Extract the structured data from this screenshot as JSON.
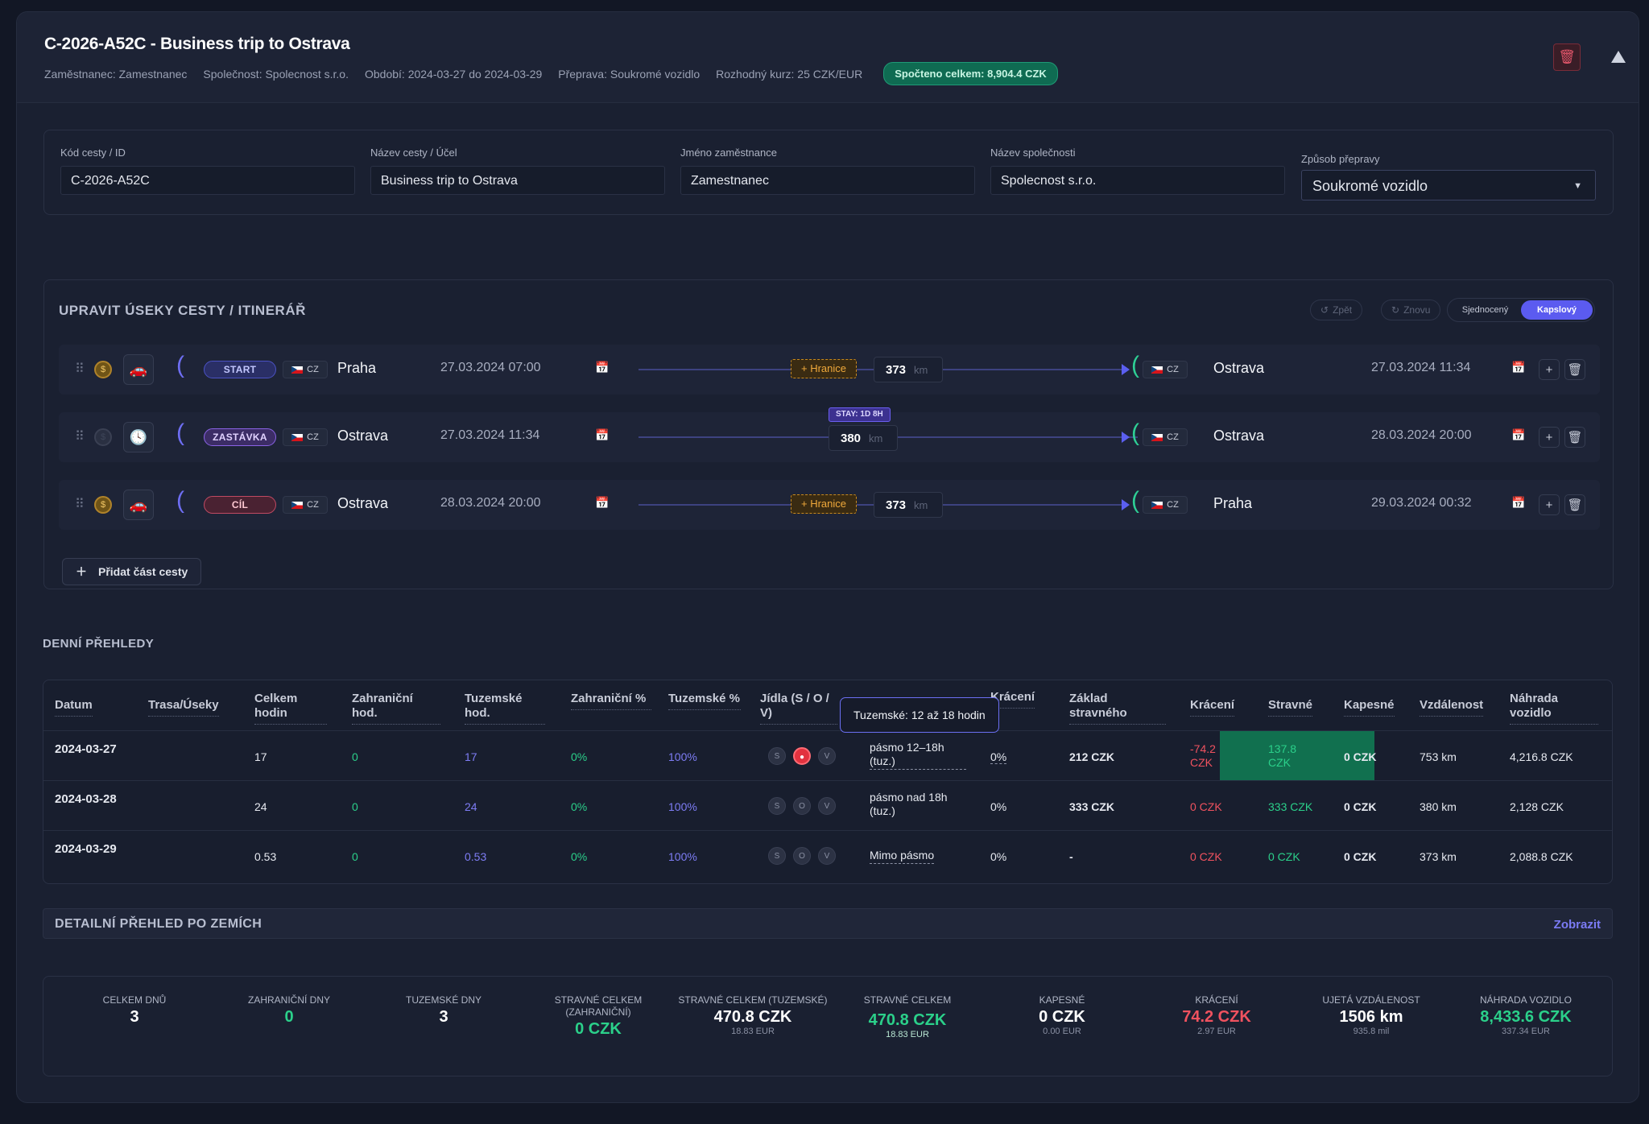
{
  "header": {
    "title": "C-2026-A52C - Business trip to Ostrava",
    "employee": "Zaměstnanec: Zamestnanec",
    "company": "Společnost: Spolecnost s.r.o.",
    "period": "Období: 2024-03-27 do 2024-03-29",
    "transport": "Přeprava: Soukromé vozidlo",
    "rate": "Rozhodný kurz: 25 CZK/EUR",
    "total_badge": "Spočteno celkem: 8,904.4 CZK"
  },
  "fields": {
    "code_label": "Kód cesty / ID",
    "code_value": "C-2026-A52C",
    "name_label": "Název cesty / Účel",
    "name_value": "Business trip to Ostrava",
    "employee_label": "Jméno zaměstnance",
    "employee_value": "Zamestnanec",
    "company_label": "Název společnosti",
    "company_value": "Spolecnost s.r.o.",
    "transport_label": "Způsob přepravy",
    "transport_value": "Soukromé vozidlo"
  },
  "itinerary": {
    "title": "UPRAVIT ÚSEKY CESTY / ITINERÁŘ",
    "undo": "Zpět",
    "redo": "Znovu",
    "view_unified": "Sjednocený",
    "view_capsule": "Kapslový",
    "add_label": "Přidat část cesty",
    "segments": [
      {
        "type": "START",
        "from_cc": "CZ",
        "from_city": "Praha",
        "from_dt": "27.03.2024 07:00",
        "border": "+ Hranice",
        "km": "373",
        "unit": "km",
        "to_cc": "CZ",
        "to_city": "Ostrava",
        "to_dt": "27.03.2024 11:34"
      },
      {
        "type": "ZASTÁVKA",
        "from_cc": "CZ",
        "from_city": "Ostrava",
        "from_dt": "27.03.2024 11:34",
        "stay": "STAY: 1D 8H",
        "km": "380",
        "unit": "km",
        "to_cc": "CZ",
        "to_city": "Ostrava",
        "to_dt": "28.03.2024 20:00"
      },
      {
        "type": "CÍL",
        "from_cc": "CZ",
        "from_city": "Ostrava",
        "from_dt": "28.03.2024 20:00",
        "border": "+ Hranice",
        "km": "373",
        "unit": "km",
        "to_cc": "CZ",
        "to_city": "Praha",
        "to_dt": "29.03.2024 00:32"
      }
    ]
  },
  "daily": {
    "title": "DENNÍ PŘEHLEDY",
    "headers": [
      "Datum",
      "Trasa/Úseky",
      "Celkem hodin",
      "Zahraniční hod.",
      "Tuzemské hod.",
      "Zahraniční %",
      "Tuzemské %",
      "Jídla (S / O / V)",
      "Krácení",
      "Základ stravného",
      "Krácení",
      "Stravné",
      "Kapesné",
      "Vzdálenost",
      "Náhrada vozidlo"
    ],
    "tooltip": "Tuzemské: 12 až 18 hodin",
    "rows": [
      {
        "date": "2024-03-27",
        "total": "17",
        "foreign_h": "0",
        "domestic_h": "17",
        "foreign_p": "0%",
        "domestic_p": "100%",
        "band": "pásmo 12–18h (tuz.)",
        "cut_p": "0%",
        "base": "212 CZK",
        "cut": "-74.2 CZK",
        "meal": "137.8 CZK",
        "pocket": "0 CZK",
        "dist": "753 km",
        "vehicle": "4,216.8 CZK"
      },
      {
        "date": "2024-03-28",
        "total": "24",
        "foreign_h": "0",
        "domestic_h": "24",
        "foreign_p": "0%",
        "domestic_p": "100%",
        "band": "pásmo nad 18h (tuz.)",
        "cut_p": "0%",
        "base": "333 CZK",
        "cut": "0 CZK",
        "meal": "333 CZK",
        "pocket": "0 CZK",
        "dist": "380 km",
        "vehicle": "2,128 CZK"
      },
      {
        "date": "2024-03-29",
        "total": "0.53",
        "foreign_h": "0",
        "domestic_h": "0.53",
        "foreign_p": "0%",
        "domestic_p": "100%",
        "band": "Mimo pásmo",
        "cut_p": "0%",
        "base": "-",
        "cut": "0 CZK",
        "meal": "0 CZK",
        "pocket": "0 CZK",
        "dist": "373 km",
        "vehicle": "2,088.8 CZK"
      }
    ],
    "meal_letters": [
      "S",
      "O",
      "V"
    ]
  },
  "countries": {
    "title": "DETAILNÍ PŘEHLED PO ZEMÍCH",
    "link": "Zobrazit"
  },
  "summary": [
    {
      "label": "CELKEM DNŮ",
      "value": "3",
      "sub": ""
    },
    {
      "label": "ZAHRANIČNÍ DNY",
      "value": "0",
      "sub": ""
    },
    {
      "label": "TUZEMSKÉ DNY",
      "value": "3",
      "sub": ""
    },
    {
      "label": "STRAVNÉ CELKEM (ZAHRANIČNÍ)",
      "value": "0 CZK",
      "sub": ""
    },
    {
      "label": "STRAVNÉ CELKEM (TUZEMSKÉ)",
      "value": "470.8 CZK",
      "sub": "18.83 EUR"
    },
    {
      "label": "STRAVNÉ CELKEM",
      "value": "470.8 CZK",
      "sub": "18.83 EUR"
    },
    {
      "label": "KAPESNÉ",
      "value": "0 CZK",
      "sub": "0.00 EUR"
    },
    {
      "label": "KRÁCENÍ",
      "value": "74.2 CZK",
      "sub": "2.97 EUR"
    },
    {
      "label": "UJETÁ VZDÁLENOST",
      "value": "1506 km",
      "sub": "935.8 mil"
    },
    {
      "label": "NÁHRADA VOZIDLO",
      "value": "8,433.6 CZK",
      "sub": "337.34 EUR"
    }
  ],
  "colors": {
    "accent": "#5b5bf0",
    "positive": "#2bd08a",
    "negative": "#f0525f",
    "highlight": "#11704f"
  }
}
